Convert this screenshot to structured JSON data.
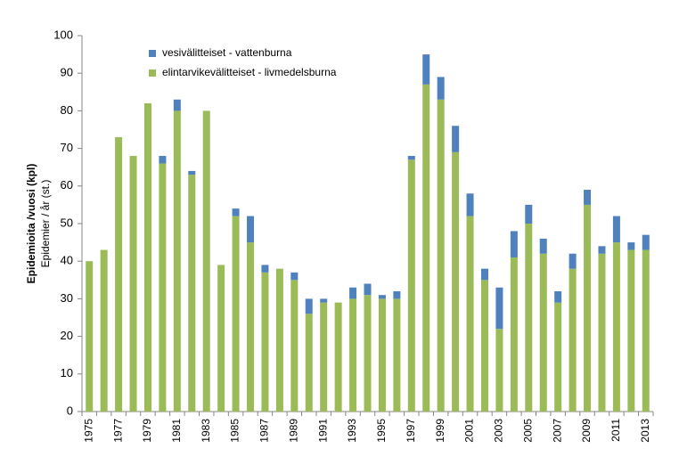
{
  "chart_data": {
    "type": "stacked_bar",
    "y_labels": [
      "Epidemioita /vuosi (kpl)",
      "Epidemier / år (st.)"
    ],
    "categories": [
      "1975",
      null,
      "1977",
      null,
      "1979",
      null,
      "1981",
      null,
      "1983",
      null,
      "1985",
      null,
      "1987",
      null,
      "1989",
      null,
      "1991",
      null,
      "1993",
      null,
      "1995",
      null,
      "1997",
      null,
      "1999",
      null,
      "2001",
      null,
      "2003",
      null,
      "2005",
      null,
      "2007",
      null,
      "2009",
      null,
      "2011",
      null,
      "2013"
    ],
    "series": [
      {
        "name": "vesivälitteiset - vattenburna",
        "color": "#4f81bd",
        "values": [
          0,
          0,
          0,
          0,
          0,
          2,
          3,
          1,
          0,
          0,
          2,
          7,
          2,
          0,
          2,
          4,
          1,
          0,
          3,
          3,
          1,
          2,
          1,
          8,
          6,
          7,
          6,
          3,
          11,
          7,
          5,
          4,
          3,
          4,
          4,
          2,
          7,
          2,
          4
        ]
      },
      {
        "name": "elintarvikevälitteiset - livmedelsburna",
        "color": "#9bbb59",
        "values": [
          40,
          43,
          73,
          68,
          82,
          66,
          80,
          63,
          80,
          39,
          52,
          45,
          37,
          38,
          35,
          26,
          29,
          29,
          30,
          31,
          30,
          30,
          67,
          87,
          83,
          69,
          52,
          35,
          22,
          41,
          50,
          42,
          29,
          38,
          55,
          42,
          45,
          43,
          43
        ]
      }
    ],
    "ylim": [
      0,
      100
    ],
    "yticks": [
      0,
      10,
      20,
      30,
      40,
      50,
      60,
      70,
      80,
      90,
      100
    ],
    "grid": false
  }
}
